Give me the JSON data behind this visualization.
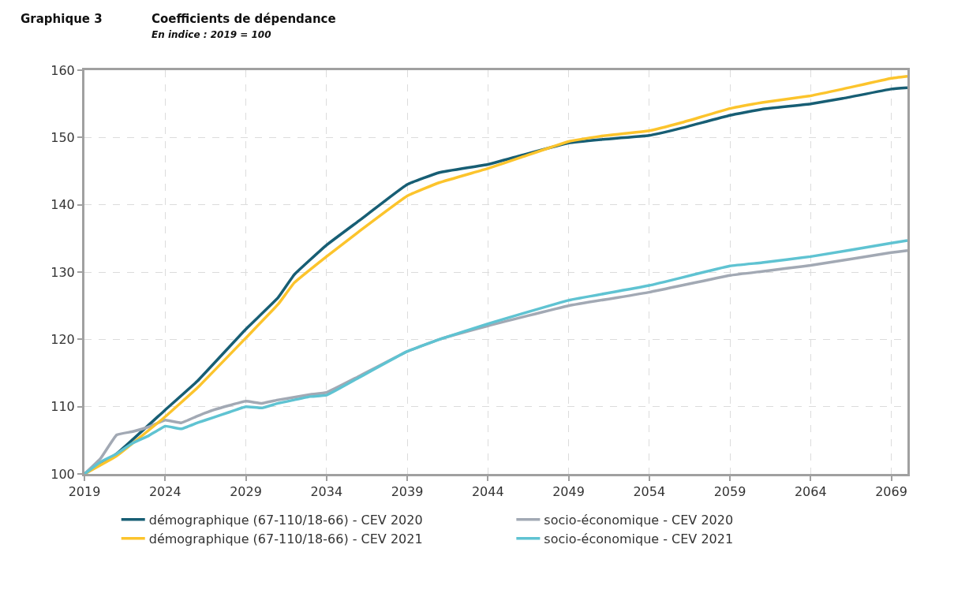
{
  "chart_data": {
    "type": "line",
    "title": "Coefficients de dépendance",
    "subtitle": "En indice : 2019 = 100",
    "annotations": [
      "Graphique 3"
    ],
    "xlim": [
      2019,
      2070
    ],
    "xticks": [
      2019,
      2024,
      2029,
      2034,
      2039,
      2044,
      2049,
      2054,
      2059,
      2064,
      2069
    ],
    "ylim": [
      100,
      160
    ],
    "yticks": [
      100,
      110,
      120,
      130,
      140,
      150,
      160
    ],
    "grid": true,
    "legend": "bottom",
    "line_style": "solid",
    "series": [
      {
        "name": "démographique (67-110/18-66) - CEV 2020",
        "color": "#175e74",
        "x": [
          2019,
          2021,
          2024,
          2026,
          2029,
          2031,
          2032,
          2034,
          2036,
          2039,
          2041,
          2044,
          2046,
          2049,
          2051,
          2054,
          2056,
          2059,
          2061,
          2064,
          2066,
          2069,
          2070
        ],
        "values": [
          100,
          103,
          109.5,
          113.8,
          121.5,
          126.2,
          129.6,
          134,
          137.6,
          143,
          144.8,
          146,
          147.3,
          149.2,
          149.7,
          150.3,
          151.4,
          153.3,
          154.2,
          155,
          155.8,
          157.2,
          157.4
        ]
      },
      {
        "name": "socio-économique - CEV 2020",
        "color": "#a2a9b4",
        "x": [
          2019,
          2020,
          2021,
          2022,
          2023,
          2024,
          2025,
          2026,
          2027,
          2028,
          2029,
          2030,
          2031,
          2032,
          2033,
          2034,
          2036,
          2039,
          2041,
          2044,
          2049,
          2054,
          2059,
          2061,
          2064,
          2069,
          2070
        ],
        "values": [
          100,
          102.3,
          105.8,
          106.3,
          107,
          108,
          107.6,
          108.6,
          109.5,
          110.2,
          110.8,
          110.5,
          111,
          111.4,
          111.8,
          112.1,
          114.5,
          118.2,
          120,
          122,
          125,
          127,
          129.5,
          130.1,
          131,
          132.9,
          133.2
        ]
      },
      {
        "name": "démographique (67-110/18-66) - CEV 2021",
        "color": "#fcc42c",
        "x": [
          2019,
          2021,
          2024,
          2026,
          2029,
          2031,
          2032,
          2034,
          2036,
          2039,
          2041,
          2044,
          2046,
          2049,
          2051,
          2054,
          2056,
          2059,
          2061,
          2064,
          2066,
          2069,
          2070
        ],
        "values": [
          100,
          102.7,
          108.5,
          112.8,
          120.2,
          125.2,
          128.4,
          132.3,
          136,
          141.3,
          143.3,
          145.4,
          147,
          149.4,
          150.2,
          151,
          152.2,
          154.3,
          155.2,
          156.2,
          157.2,
          158.8,
          159.1
        ]
      },
      {
        "name": "socio-économique - CEV 2021",
        "color": "#5fc3d2",
        "x": [
          2019,
          2020,
          2021,
          2022,
          2023,
          2024,
          2025,
          2026,
          2027,
          2028,
          2029,
          2030,
          2031,
          2032,
          2033,
          2034,
          2036,
          2039,
          2041,
          2044,
          2049,
          2054,
          2059,
          2061,
          2064,
          2069,
          2070
        ],
        "values": [
          100,
          101.8,
          103,
          104.6,
          105.7,
          107.1,
          106.7,
          107.6,
          108.4,
          109.2,
          110,
          109.8,
          110.5,
          111,
          111.5,
          111.7,
          114.3,
          118.2,
          120,
          122.3,
          125.8,
          128,
          130.9,
          131.4,
          132.3,
          134.3,
          134.7
        ]
      }
    ]
  }
}
